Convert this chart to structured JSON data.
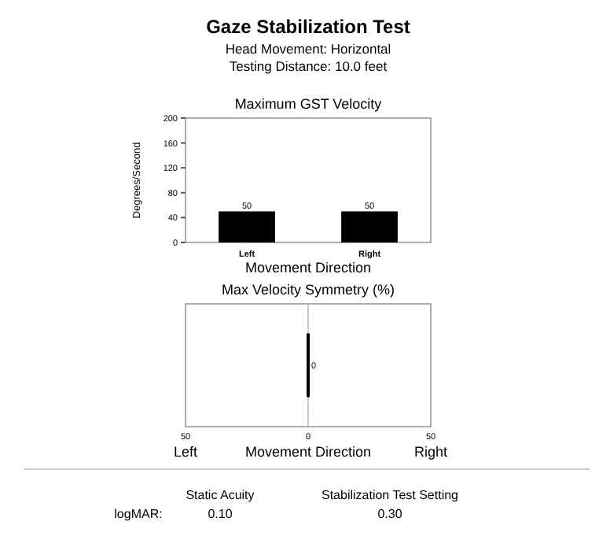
{
  "chart_data": [
    {
      "type": "other",
      "title": "Gaze Stabilization Test",
      "annotations": [
        "Head Movement: Horizontal",
        "Testing Distance: 10.0 feet"
      ]
    },
    {
      "type": "bar",
      "title": "Maximum GST Velocity",
      "xlabel": "Movement Direction",
      "ylabel": "Degrees/Second",
      "categories": [
        "Left",
        "Right"
      ],
      "values": [
        50,
        50
      ],
      "color": "#000000",
      "ylim": [
        0,
        200
      ],
      "yticks": [
        0,
        40,
        80,
        120,
        160,
        200
      ],
      "data_labels": true,
      "grid": false
    },
    {
      "type": "bar",
      "orientation": "horizontal",
      "title": "Max Velocity Symmetry (%)",
      "xlabel": "Movement Direction",
      "categories": [
        null
      ],
      "values": [
        0
      ],
      "color": "#000000",
      "xlim": [
        -50,
        50
      ],
      "xticks": [
        {
          "value": -50,
          "label": "50"
        },
        0,
        50
      ],
      "data_labels": true,
      "grid": false,
      "tick_labels": "x",
      "ref_lines": [
        {
          "axis": "x",
          "value": 0,
          "color": "#bbbbbb"
        }
      ],
      "annotations": [
        "Left",
        "Right"
      ]
    },
    {
      "type": "other",
      "annotations": [
        "Static Acuity",
        "Stabilization Test Setting",
        "logMAR:",
        "0.10",
        "0.30"
      ]
    }
  ]
}
